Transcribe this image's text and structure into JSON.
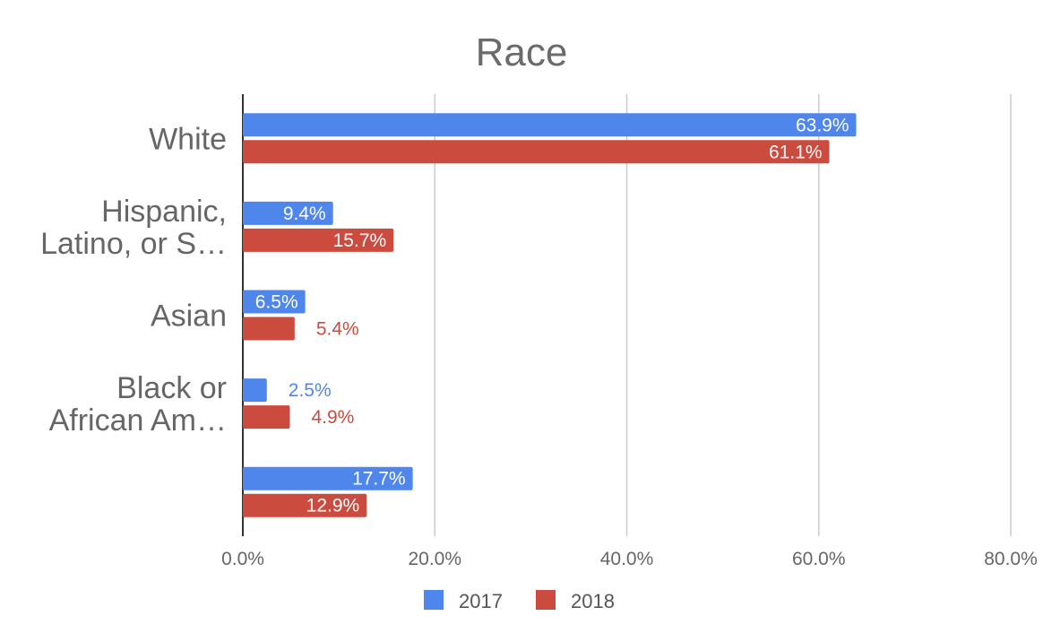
{
  "chart_data": {
    "type": "bar",
    "orientation": "horizontal",
    "title": "Race",
    "categories": [
      [
        "White"
      ],
      [
        "Hispanic,",
        "Latino, or S…"
      ],
      [
        "Asian"
      ],
      [
        "Black or",
        "African Am…"
      ],
      [
        ""
      ]
    ],
    "series": [
      {
        "name": "2017",
        "color": "#4f86ec",
        "values": [
          63.9,
          9.4,
          6.5,
          2.5,
          17.7
        ],
        "labels": [
          "63.9%",
          "9.4%",
          "6.5%",
          "2.5%",
          "17.7%"
        ]
      },
      {
        "name": "2018",
        "color": "#cc4b3f",
        "values": [
          61.1,
          15.7,
          5.4,
          4.9,
          12.9
        ],
        "labels": [
          "61.1%",
          "15.7%",
          "5.4%",
          "4.9%",
          "12.9%"
        ]
      }
    ],
    "xlim": [
      0,
      80
    ],
    "ticks": [
      0,
      20,
      40,
      60,
      80
    ],
    "tick_labels": [
      "0.0%",
      "20.0%",
      "40.0%",
      "60.0%",
      "80.0%"
    ],
    "grid": true,
    "legend": "bottom"
  }
}
